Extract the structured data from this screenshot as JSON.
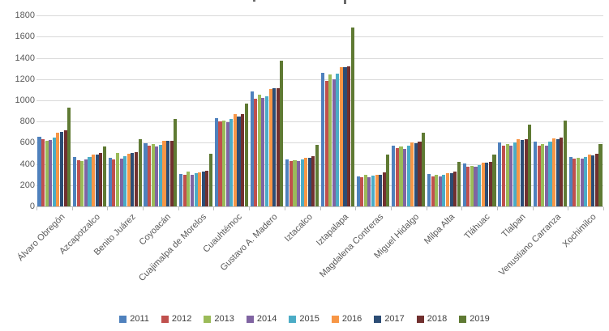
{
  "chart_data": {
    "type": "bar",
    "title": "",
    "xlabel": "",
    "ylabel": "",
    "ylim": [
      0,
      1800
    ],
    "ytick_step": 200,
    "yticks": [
      0,
      200,
      400,
      600,
      800,
      1000,
      1200,
      1400,
      1600,
      1800
    ],
    "grid": true,
    "legend_position": "bottom",
    "colors": {
      "gridline": "#d9d9d9",
      "axis": "#bfbfbf",
      "tick_label": "#595959",
      "legend_text": "#404040"
    },
    "categories": [
      "Álvaro Obregón",
      "Azcapotzalco",
      "Benito Juárez",
      "Coyoacán",
      "Cuajimalpa de Morelos",
      "Cuauhtémoc",
      "Gustavo A. Madero",
      "Iztacalco",
      "Iztapalapa",
      "Magdalena Contreras",
      "Miguel Hidalgo",
      "Milpa Alta",
      "Tláhuac",
      "Tlalpan",
      "Venustiano Carranza",
      "Xochimilco"
    ],
    "series": [
      {
        "name": "2011",
        "color": "#4F81BD",
        "values": [
          660,
          470,
          465,
          600,
          310,
          840,
          1090,
          450,
          1265,
          290,
          575,
          310,
          410,
          605,
          615,
          470
        ]
      },
      {
        "name": "2012",
        "color": "#C0504D",
        "values": [
          640,
          440,
          450,
          575,
          300,
          805,
          1020,
          430,
          1190,
          280,
          550,
          285,
          380,
          580,
          580,
          455
        ]
      },
      {
        "name": "2013",
        "color": "#9BBB59",
        "values": [
          625,
          435,
          505,
          590,
          335,
          810,
          1060,
          440,
          1245,
          300,
          570,
          300,
          385,
          595,
          590,
          465
        ]
      },
      {
        "name": "2014",
        "color": "#8064A2",
        "values": [
          630,
          445,
          455,
          570,
          300,
          800,
          1025,
          430,
          1200,
          280,
          545,
          285,
          375,
          580,
          575,
          455
        ]
      },
      {
        "name": "2015",
        "color": "#4BACC6",
        "values": [
          650,
          470,
          475,
          585,
          320,
          825,
          1045,
          445,
          1255,
          295,
          580,
          300,
          390,
          605,
          615,
          470
        ]
      },
      {
        "name": "2016",
        "color": "#F79646",
        "values": [
          700,
          495,
          500,
          625,
          325,
          875,
          1110,
          465,
          1320,
          305,
          605,
          320,
          420,
          635,
          645,
          490
        ]
      },
      {
        "name": "2017",
        "color": "#2C4D75",
        "values": [
          710,
          490,
          505,
          620,
          330,
          855,
          1115,
          460,
          1315,
          305,
          600,
          315,
          415,
          630,
          635,
          485
        ]
      },
      {
        "name": "2018",
        "color": "#71302F",
        "values": [
          725,
          505,
          515,
          625,
          340,
          875,
          1120,
          480,
          1325,
          325,
          615,
          330,
          425,
          640,
          650,
          500
        ]
      },
      {
        "name": "2019",
        "color": "#5F7A33",
        "values": [
          935,
          570,
          640,
          825,
          500,
          975,
          1380,
          585,
          1690,
          490,
          700,
          425,
          490,
          775,
          815,
          595
        ]
      }
    ]
  }
}
